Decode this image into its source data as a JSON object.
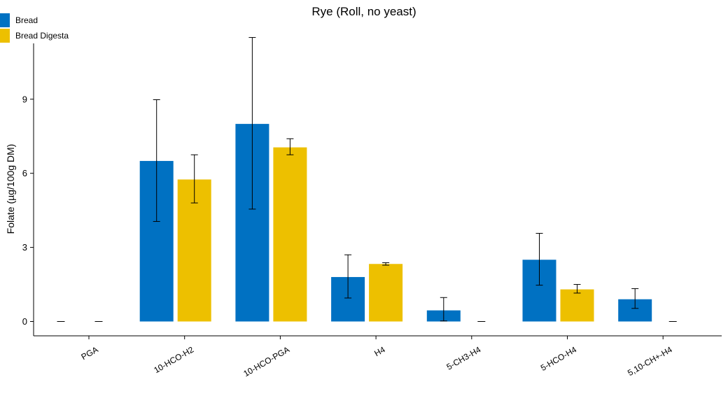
{
  "chart_data": {
    "type": "bar",
    "title": "Rye (Roll, no yeast)",
    "xlabel": "",
    "ylabel": "Folate (µg/100g DM)",
    "ylim": [
      -0.6,
      11.5
    ],
    "yticks": [
      0,
      3,
      6,
      9
    ],
    "ytick_labels": [
      "0",
      "3",
      "6",
      "9"
    ],
    "grid": false,
    "legend_position": "top-left",
    "categories": [
      "PGA",
      "10-HCO-H2",
      "10-HCO-PGA",
      "H4",
      "5-CH3-H4",
      "5-HCO-H4",
      "5,10-CH+-H4"
    ],
    "series": [
      {
        "name": "Bread",
        "color": "#0071C2",
        "values": [
          0,
          6.5,
          8.0,
          1.8,
          0.45,
          2.5,
          0.9
        ],
        "err_low": [
          0,
          4.05,
          4.55,
          0.95,
          0.02,
          1.47,
          0.53
        ],
        "err_high": [
          0,
          8.98,
          11.5,
          2.7,
          0.97,
          3.57,
          1.33
        ]
      },
      {
        "name": "Bread Digesta",
        "color": "#EDC000",
        "values": [
          0,
          5.75,
          7.05,
          2.33,
          0,
          1.3,
          0
        ],
        "err_low": [
          0,
          4.8,
          6.75,
          2.28,
          0,
          1.15,
          0
        ],
        "err_high": [
          0,
          6.75,
          7.4,
          2.38,
          0,
          1.5,
          0
        ]
      }
    ]
  }
}
